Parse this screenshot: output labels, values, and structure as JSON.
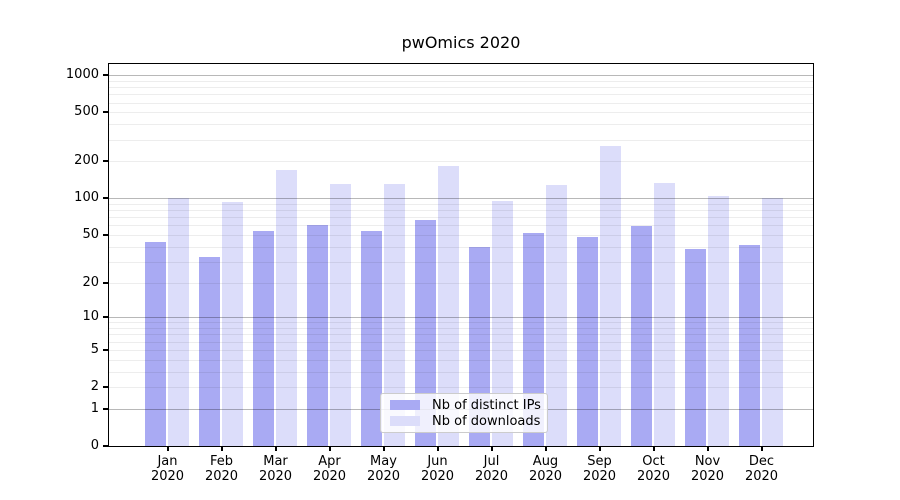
{
  "title": "pwOmics 2020",
  "chart_data": {
    "type": "bar",
    "title": "pwOmics 2020",
    "year": "2020",
    "categories": [
      "Jan",
      "Feb",
      "Mar",
      "Apr",
      "May",
      "Jun",
      "Jul",
      "Aug",
      "Sep",
      "Oct",
      "Nov",
      "Dec"
    ],
    "series": [
      {
        "name": "Nb of distinct IPs",
        "color": "#a9aaf3",
        "values": [
          44,
          33,
          54,
          60,
          54,
          66,
          40,
          52,
          48,
          59,
          38,
          41
        ]
      },
      {
        "name": "Nb of downloads",
        "color": "#dcddfa",
        "values": [
          100,
          93,
          170,
          130,
          132,
          183,
          95,
          128,
          265,
          133,
          104,
          101
        ]
      }
    ],
    "yscale": "log1p",
    "yticks": [
      1000,
      500,
      200,
      100,
      50,
      20,
      10,
      5,
      2,
      1,
      0
    ],
    "ytick_labels": [
      "1000",
      "500",
      "200",
      "100",
      "50",
      "20",
      "10",
      "5",
      "2",
      "1",
      "0"
    ],
    "ylim": [
      0,
      1234
    ],
    "grid": true,
    "grid_which": "both",
    "legend_position": "lower center"
  }
}
